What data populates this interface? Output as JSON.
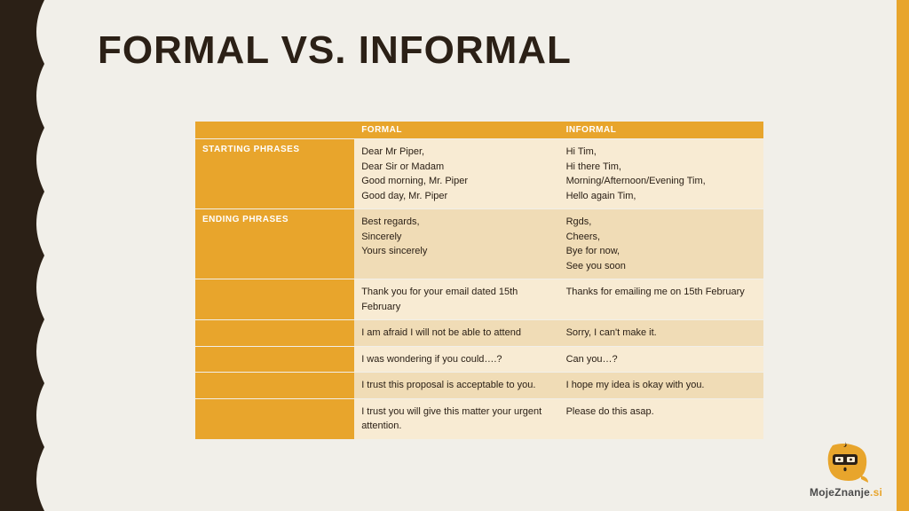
{
  "colors": {
    "background": "#f1efe9",
    "accent": "#e8a52c",
    "dark": "#2b2016",
    "cell_light": "#f8ebd3",
    "cell_dark": "#f0dcb6"
  },
  "title": "FORMAL VS. INFORMAL",
  "table": {
    "columns": [
      "",
      "FORMAL",
      "INFORMAL"
    ],
    "rows": [
      {
        "label": "STARTING PHRASES",
        "formal": [
          "Dear Mr Piper,",
          "Dear Sir or Madam",
          "Good morning, Mr. Piper",
          "Good day, Mr. Piper"
        ],
        "informal": [
          "Hi Tim,",
          "Hi there Tim,",
          "Morning/Afternoon/Evening Tim,",
          "Hello again Tim,"
        ],
        "shade": "light"
      },
      {
        "label": "ENDING PHRASES",
        "formal": [
          "Best regards,",
          "Sincerely",
          "Yours sincerely"
        ],
        "informal": [
          "Rgds,",
          "Cheers,",
          "Bye for now,",
          "See you soon"
        ],
        "shade": "dark"
      },
      {
        "label": "",
        "formal": [
          "Thank you for your email dated 15th February"
        ],
        "informal": [
          "Thanks for emailing me on 15th February"
        ],
        "shade": "light"
      },
      {
        "label": "",
        "formal": [
          "I am afraid I will not be able to attend"
        ],
        "informal": [
          "Sorry, I can't make it."
        ],
        "shade": "dark"
      },
      {
        "label": "",
        "formal": [
          "I was wondering if you could….?"
        ],
        "informal": [
          "Can you…?"
        ],
        "shade": "light"
      },
      {
        "label": "",
        "formal": [
          "I trust this proposal is acceptable to you."
        ],
        "informal": [
          "I hope my idea is okay with you."
        ],
        "shade": "dark"
      },
      {
        "label": "",
        "formal": [
          "I trust you will give this matter your urgent attention."
        ],
        "informal": [
          "Please do this asap."
        ],
        "shade": "light"
      }
    ]
  },
  "logo": {
    "name": "MojeZnanje",
    "tld": ".si"
  }
}
